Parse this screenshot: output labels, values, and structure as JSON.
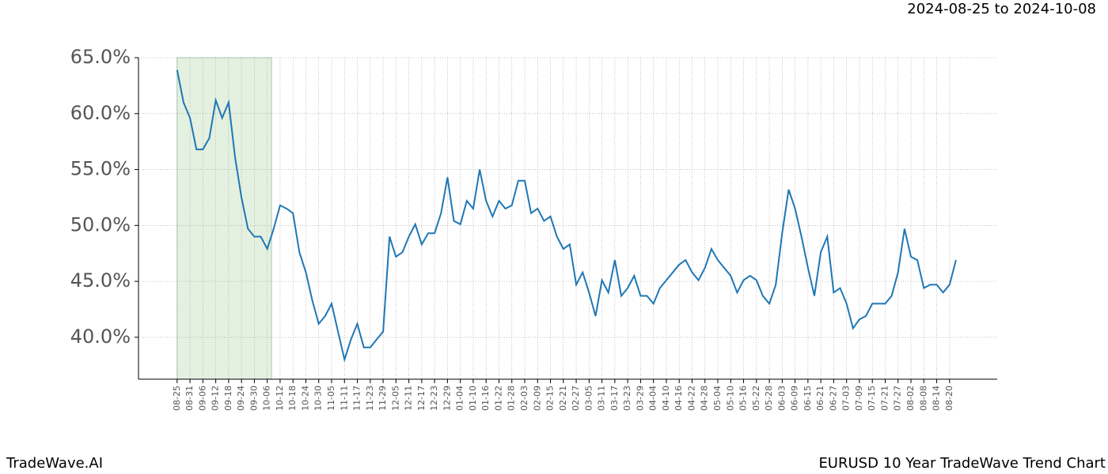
{
  "chart_data": {
    "type": "line",
    "title": "EURUSD 10 Year TradeWave Trend Chart",
    "subtitle": "2024-08-25 to 2024-10-08",
    "brand": "TradeWave.AI",
    "categories": [
      "08-25",
      null,
      "08-31",
      null,
      "09-06",
      null,
      "09-12",
      null,
      "09-18",
      null,
      "09-24",
      null,
      "09-30",
      null,
      "10-06",
      null,
      "10-12",
      null,
      "10-18",
      null,
      "10-24",
      null,
      "10-30",
      null,
      "11-05",
      null,
      "11-11",
      null,
      "11-17",
      null,
      "11-23",
      null,
      "11-29",
      null,
      "12-05",
      null,
      "12-11",
      null,
      "12-17",
      null,
      "12-23",
      null,
      "12-29",
      null,
      "01-04",
      null,
      "01-10",
      null,
      "01-16",
      null,
      "01-22",
      null,
      "01-28",
      null,
      "02-03",
      null,
      "02-09",
      null,
      "02-15",
      null,
      "02-21",
      null,
      "02-27",
      null,
      "03-05",
      null,
      "03-11",
      null,
      "03-17",
      null,
      "03-23",
      null,
      "03-29",
      null,
      "04-04",
      null,
      "04-10",
      null,
      "04-16",
      null,
      "04-22",
      null,
      "04-28",
      null,
      "05-04",
      null,
      "05-10",
      null,
      "05-16",
      null,
      "05-22",
      null,
      "05-28",
      null,
      "06-03",
      null,
      "06-09",
      null,
      "06-15",
      null,
      "06-21",
      null,
      "06-27",
      null,
      "07-03",
      null,
      "07-09",
      null,
      "07-15",
      null,
      "07-21",
      null,
      "07-27",
      null,
      "08-02",
      null,
      "08-08",
      null,
      "08-14",
      null,
      "08-20",
      null
    ],
    "values": [
      63.9,
      61.0,
      59.6,
      56.8,
      56.8,
      57.8,
      61.2,
      59.6,
      61.0,
      56.1,
      52.5,
      49.7,
      49.0,
      49.0,
      47.9,
      49.7,
      51.8,
      51.5,
      51.1,
      47.6,
      45.8,
      43.3,
      41.2,
      41.9,
      43.0,
      40.5,
      38.0,
      39.8,
      41.2,
      39.1,
      39.1,
      39.8,
      40.5,
      49.0,
      47.2,
      47.6,
      49.0,
      50.1,
      48.3,
      49.3,
      49.3,
      51.1,
      54.3,
      50.4,
      50.1,
      52.2,
      51.5,
      55.0,
      52.2,
      50.8,
      52.2,
      51.5,
      51.8,
      54.0,
      54.0,
      51.1,
      51.5,
      50.4,
      50.8,
      49.0,
      47.9,
      48.3,
      44.7,
      45.8,
      44.0,
      41.9,
      45.1,
      44.0,
      46.9,
      43.7,
      44.4,
      45.5,
      43.7,
      43.7,
      43.0,
      44.4,
      45.1,
      45.8,
      46.5,
      46.9,
      45.8,
      45.1,
      46.2,
      47.9,
      46.9,
      46.2,
      45.5,
      44.0,
      45.1,
      45.5,
      45.1,
      43.7,
      43.0,
      44.7,
      49.3,
      53.2,
      51.5,
      49.0,
      46.2,
      43.7,
      47.6,
      49.0,
      44.0,
      44.4,
      43.0,
      40.8,
      41.6,
      41.9,
      43.0,
      43.0,
      43.0,
      43.7,
      45.8,
      49.7,
      47.2,
      46.9,
      44.4,
      44.7,
      44.7,
      44.0,
      44.7,
      46.9
    ],
    "color": "#1f77b4",
    "xlim": [
      -6,
      127.4
    ],
    "ylim": [
      36.25,
      65
    ],
    "yticks": [
      {
        "value": 40,
        "label": "40.0%"
      },
      {
        "value": 45,
        "label": "45.0%"
      },
      {
        "value": 50,
        "label": "50.0%"
      },
      {
        "value": 55,
        "label": "55.0%"
      },
      {
        "value": 60,
        "label": "60.0%"
      },
      {
        "value": 65,
        "label": "65.0%"
      }
    ],
    "grid": true,
    "highlight": {
      "from": 0,
      "to": 14.67,
      "color": "#d9ead3"
    }
  }
}
